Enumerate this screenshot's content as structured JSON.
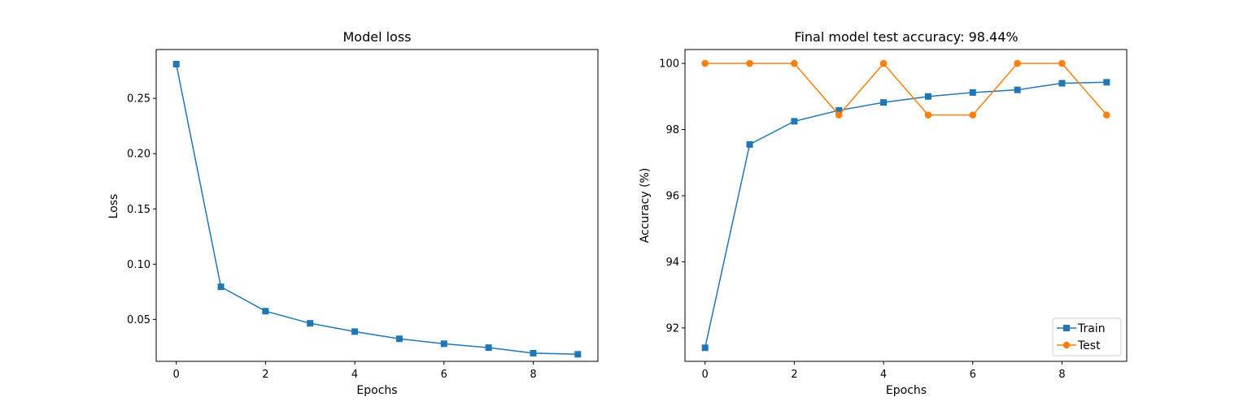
{
  "chart_data": [
    {
      "type": "line",
      "title": "Model loss",
      "xlabel": "Epochs",
      "ylabel": "Loss",
      "xlim": [
        -0.45,
        9.45
      ],
      "ylim": [
        0.0121,
        0.2942
      ],
      "x_ticks": [
        0,
        2,
        4,
        6,
        8
      ],
      "x_tick_labels": [
        "0",
        "2",
        "4",
        "6",
        "8"
      ],
      "y_ticks": [
        0.05,
        0.1,
        0.15,
        0.2,
        0.25
      ],
      "y_tick_labels": [
        "0.05",
        "0.10",
        "0.15",
        "0.20",
        "0.25"
      ],
      "grid": false,
      "series": [
        {
          "color": "#1f77b4",
          "marker": "square",
          "x": [
            0,
            1,
            2,
            3,
            4,
            5,
            6,
            7,
            8,
            9
          ],
          "values": [
            0.281,
            0.0795,
            0.0575,
            0.0465,
            0.039,
            0.0325,
            0.028,
            0.0245,
            0.0195,
            0.0185
          ]
        }
      ]
    },
    {
      "type": "line",
      "title": "Final model test accuracy: 98.44%",
      "xlabel": "Epochs",
      "ylabel": "Accuracy (%)",
      "xlim": [
        -0.45,
        9.45
      ],
      "ylim": [
        90.99,
        100.42
      ],
      "x_ticks": [
        0,
        2,
        4,
        6,
        8
      ],
      "x_tick_labels": [
        "0",
        "2",
        "4",
        "6",
        "8"
      ],
      "y_ticks": [
        92,
        94,
        96,
        98,
        100
      ],
      "y_tick_labels": [
        "92",
        "94",
        "96",
        "98",
        "100"
      ],
      "grid": false,
      "legend": "lower-right",
      "series": [
        {
          "name": "Train",
          "color": "#1f77b4",
          "marker": "square",
          "x": [
            0,
            1,
            2,
            3,
            4,
            5,
            6,
            7,
            8,
            9
          ],
          "values": [
            91.4,
            97.55,
            98.25,
            98.58,
            98.82,
            99.0,
            99.12,
            99.2,
            99.4,
            99.43
          ]
        },
        {
          "name": "Test",
          "color": "#ff7f0e",
          "marker": "circle",
          "x": [
            0,
            1,
            2,
            3,
            4,
            5,
            6,
            7,
            8,
            9
          ],
          "values": [
            100,
            100,
            100,
            98.44,
            100,
            98.44,
            98.44,
            100,
            100,
            98.44
          ]
        }
      ]
    }
  ]
}
